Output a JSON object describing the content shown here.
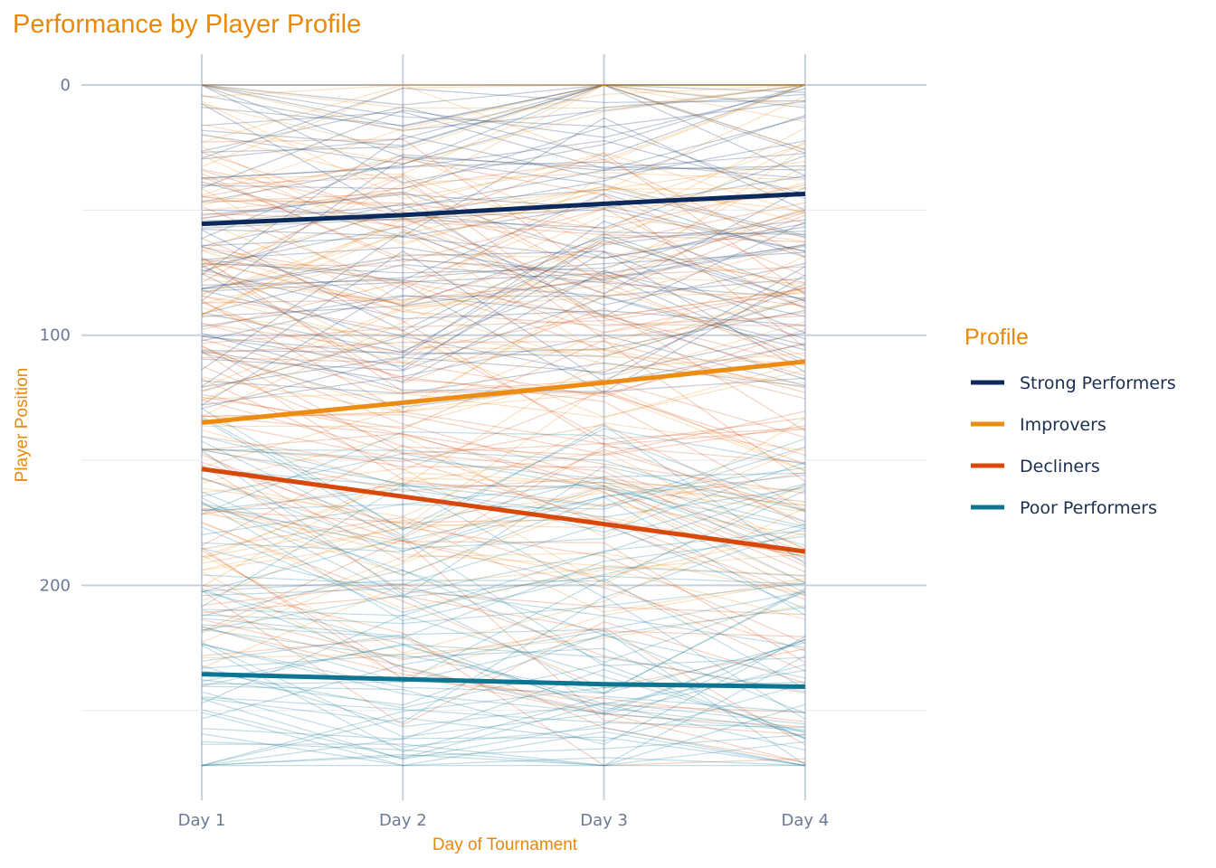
{
  "chart_data": {
    "type": "line",
    "title": "Performance by Player Profile",
    "xlabel": "Day of Tournament",
    "ylabel": "Player Position",
    "categories": [
      "Day 1",
      "Day 2",
      "Day 3",
      "Day 4"
    ],
    "y_ticks": [
      0,
      100,
      200
    ],
    "ylim": [
      0,
      270
    ],
    "y_reversed": true,
    "grid": true,
    "legend": {
      "title": "Profile",
      "placement": "right"
    },
    "series": [
      {
        "name": "Strong Performers",
        "color": "#0b2a5b",
        "values": [
          55.5,
          52,
          47.5,
          43.5
        ]
      },
      {
        "name": "Improvers",
        "color": "#ec8c12",
        "values": [
          135,
          127,
          119,
          110.5
        ]
      },
      {
        "name": "Decliners",
        "color": "#d8480a",
        "values": [
          153.5,
          164.5,
          175.5,
          186.5
        ]
      },
      {
        "name": "Poor Performers",
        "color": "#0d7492",
        "values": [
          235.5,
          237.5,
          239.5,
          240.5
        ]
      }
    ],
    "individual_lines": {
      "description_count_per_profile": 70,
      "opacity": 0.25
    }
  }
}
